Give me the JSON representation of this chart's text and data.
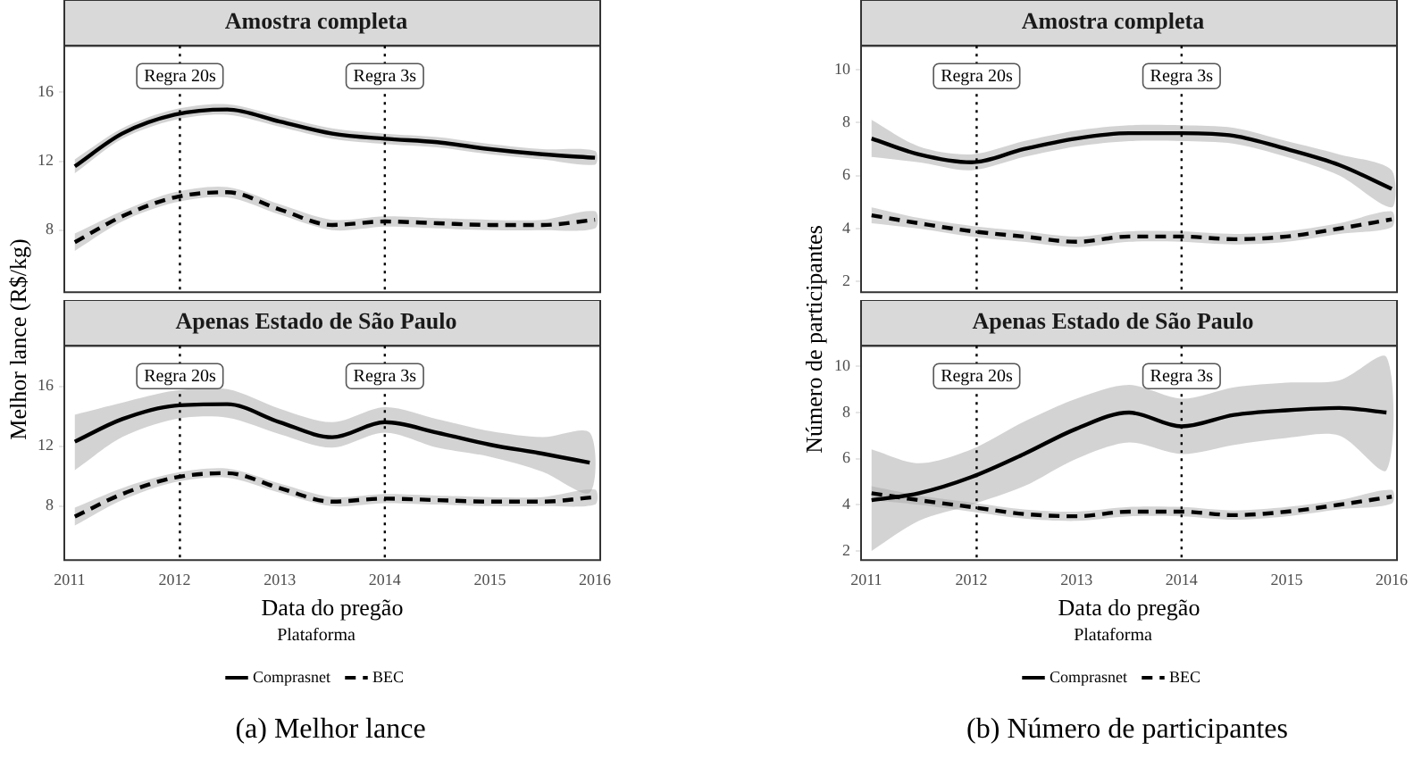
{
  "chart_data": [
    {
      "type": "line",
      "title": "Amostra completa",
      "ylabel": "Melhor lance (R$/kg)",
      "x": [
        2011.05,
        2011.5,
        2012,
        2012.5,
        2013,
        2013.5,
        2014,
        2014.5,
        2015,
        2015.5,
        2016
      ],
      "xlim": [
        2010.95,
        2016.05
      ],
      "xticks": [
        2011,
        2012,
        2013,
        2014,
        2015,
        2016
      ],
      "ylim": [
        4.4,
        18.7
      ],
      "yticks": [
        8,
        12,
        16
      ],
      "tick_labels": "y",
      "grid": false,
      "legend": false,
      "marker": "none",
      "series": [
        {
          "color": "#000000",
          "line_style": "solid",
          "values": [
            11.7,
            13.6,
            14.7,
            15.0,
            14.3,
            13.6,
            13.3,
            13.1,
            12.7,
            12.4,
            12.2
          ],
          "lower": [
            11.3,
            13.3,
            14.4,
            14.7,
            14.0,
            13.3,
            13.0,
            12.8,
            12.4,
            12.1,
            11.8
          ],
          "upper": [
            12.1,
            13.9,
            15.0,
            15.3,
            14.6,
            13.9,
            13.6,
            13.4,
            13.0,
            12.7,
            12.6
          ]
        },
        {
          "color": "#000000",
          "line_style": "dashed",
          "values": [
            7.3,
            8.8,
            9.9,
            10.2,
            9.2,
            8.3,
            8.5,
            8.4,
            8.3,
            8.3,
            8.6
          ],
          "lower": [
            6.8,
            8.5,
            9.6,
            9.9,
            8.9,
            8.0,
            8.2,
            8.1,
            8.0,
            8.0,
            8.1
          ],
          "upper": [
            7.8,
            9.1,
            10.2,
            10.5,
            9.5,
            8.6,
            8.8,
            8.7,
            8.6,
            8.6,
            9.1
          ]
        }
      ],
      "ref_lines": [
        {
          "axis": "x",
          "value": 2012.05,
          "label": "Regra 20s",
          "line_style": "dotted"
        },
        {
          "axis": "x",
          "value": 2014,
          "label": "Regra 3s",
          "line_style": "dotted"
        }
      ]
    },
    {
      "type": "line",
      "title": "Apenas Estado de São Paulo",
      "xlabel": "Data do pregão",
      "legend_title": "Plataforma",
      "annotations": [
        "(a) Melhor lance"
      ],
      "x": [
        2011.05,
        2011.5,
        2012,
        2012.5,
        2013,
        2013.5,
        2014,
        2014.5,
        2015,
        2015.5,
        2015.95
      ],
      "xlim": [
        2010.95,
        2016.05
      ],
      "xticks": [
        2011,
        2012,
        2013,
        2014,
        2015,
        2016
      ],
      "ylim": [
        4.4,
        18.7
      ],
      "yticks": [
        8,
        12,
        16
      ],
      "grid": false,
      "legend": "bottom",
      "marker": "none",
      "series": [
        {
          "name": "Comprasnet",
          "color": "#000000",
          "line_style": "solid",
          "values": [
            12.3,
            13.8,
            14.7,
            14.8,
            13.6,
            12.6,
            13.6,
            12.9,
            12.1,
            11.5,
            10.9
          ],
          "lower": [
            10.4,
            12.6,
            13.8,
            13.9,
            12.8,
            11.9,
            12.9,
            11.9,
            11.3,
            10.3,
            8.9
          ],
          "upper": [
            14.1,
            14.9,
            15.7,
            15.8,
            14.5,
            13.6,
            14.6,
            13.8,
            13.0,
            12.6,
            12.9
          ]
        },
        {
          "name": "BEC",
          "color": "#000000",
          "line_style": "dashed",
          "x": [
            2011.05,
            2011.5,
            2012,
            2012.5,
            2013,
            2013.5,
            2014,
            2014.5,
            2015,
            2015.5,
            2016
          ],
          "values": [
            7.3,
            8.8,
            9.9,
            10.2,
            9.2,
            8.3,
            8.5,
            8.4,
            8.3,
            8.3,
            8.6
          ],
          "lower": [
            6.7,
            8.4,
            9.6,
            9.9,
            8.9,
            8.0,
            8.2,
            8.1,
            8.0,
            8.0,
            8.1
          ],
          "upper": [
            7.9,
            9.2,
            10.2,
            10.5,
            9.5,
            8.6,
            8.8,
            8.7,
            8.6,
            8.6,
            9.1
          ]
        }
      ],
      "ref_lines": [
        {
          "axis": "x",
          "value": 2012.05,
          "label": "Regra 20s",
          "line_style": "dotted"
        },
        {
          "axis": "x",
          "value": 2014,
          "label": "Regra 3s",
          "line_style": "dotted"
        }
      ]
    },
    {
      "type": "line",
      "title": "Amostra completa",
      "ylabel": "Número de participantes",
      "x": [
        2011.05,
        2011.5,
        2012,
        2012.5,
        2013,
        2013.5,
        2014,
        2014.5,
        2015,
        2015.5,
        2016
      ],
      "xlim": [
        2010.95,
        2016.05
      ],
      "xticks": [
        2011,
        2012,
        2013,
        2014,
        2015,
        2016
      ],
      "ylim": [
        1.6,
        10.9
      ],
      "yticks": [
        2,
        4,
        6,
        8,
        10
      ],
      "tick_labels": "y",
      "grid": false,
      "legend": false,
      "marker": "none",
      "series": [
        {
          "color": "#000000",
          "line_style": "solid",
          "values": [
            7.4,
            6.8,
            6.5,
            7.0,
            7.4,
            7.6,
            7.6,
            7.5,
            7.0,
            6.4,
            5.5
          ],
          "lower": [
            6.7,
            6.5,
            6.2,
            6.7,
            7.1,
            7.3,
            7.3,
            7.2,
            6.7,
            6.0,
            4.8
          ],
          "upper": [
            8.1,
            7.1,
            6.8,
            7.3,
            7.7,
            7.9,
            7.9,
            7.8,
            7.3,
            6.8,
            6.2
          ]
        },
        {
          "color": "#000000",
          "line_style": "dashed",
          "values": [
            4.5,
            4.2,
            3.9,
            3.7,
            3.5,
            3.7,
            3.7,
            3.6,
            3.7,
            4.0,
            4.35
          ],
          "lower": [
            4.2,
            4.0,
            3.7,
            3.5,
            3.3,
            3.5,
            3.5,
            3.4,
            3.5,
            3.8,
            4.05
          ],
          "upper": [
            4.8,
            4.4,
            4.1,
            3.9,
            3.7,
            3.9,
            3.9,
            3.8,
            3.9,
            4.2,
            4.65
          ]
        }
      ],
      "ref_lines": [
        {
          "axis": "x",
          "value": 2012.05,
          "label": "Regra 20s",
          "line_style": "dotted"
        },
        {
          "axis": "x",
          "value": 2014,
          "label": "Regra 3s",
          "line_style": "dotted"
        }
      ]
    },
    {
      "type": "line",
      "title": "Apenas Estado de São Paulo",
      "xlabel": "Data do pregão",
      "legend_title": "Plataforma",
      "annotations": [
        "(b) Número de participantes"
      ],
      "x": [
        2011.05,
        2011.5,
        2012,
        2012.5,
        2013,
        2013.5,
        2014,
        2014.5,
        2015,
        2015.5,
        2015.95
      ],
      "xlim": [
        2010.95,
        2016.05
      ],
      "xticks": [
        2011,
        2012,
        2013,
        2014,
        2015,
        2016
      ],
      "ylim": [
        1.6,
        10.9
      ],
      "yticks": [
        2,
        4,
        6,
        8,
        10
      ],
      "grid": false,
      "legend": "bottom",
      "marker": "none",
      "series": [
        {
          "name": "Comprasnet",
          "color": "#000000",
          "line_style": "solid",
          "values": [
            4.2,
            4.5,
            5.2,
            6.2,
            7.3,
            8.0,
            7.4,
            7.9,
            8.1,
            8.2,
            8.0
          ],
          "lower": [
            2.0,
            3.3,
            4.0,
            4.8,
            6.0,
            6.7,
            6.2,
            6.6,
            6.9,
            7.0,
            5.5
          ],
          "upper": [
            6.4,
            5.8,
            6.4,
            7.6,
            8.6,
            9.2,
            8.6,
            9.1,
            9.3,
            9.4,
            10.4
          ]
        },
        {
          "name": "BEC",
          "color": "#000000",
          "line_style": "dashed",
          "x": [
            2011.05,
            2011.5,
            2012,
            2012.5,
            2013,
            2013.5,
            2014,
            2014.5,
            2015,
            2015.5,
            2016
          ],
          "values": [
            4.5,
            4.2,
            3.9,
            3.6,
            3.5,
            3.7,
            3.7,
            3.55,
            3.7,
            4.0,
            4.35
          ],
          "lower": [
            4.2,
            4.0,
            3.7,
            3.4,
            3.3,
            3.5,
            3.5,
            3.35,
            3.5,
            3.8,
            4.05
          ],
          "upper": [
            4.8,
            4.4,
            4.1,
            3.8,
            3.7,
            3.9,
            3.9,
            3.75,
            3.9,
            4.2,
            4.65
          ]
        }
      ],
      "ref_lines": [
        {
          "axis": "x",
          "value": 2012.05,
          "label": "Regra 20s",
          "line_style": "dotted"
        },
        {
          "axis": "x",
          "value": 2014,
          "label": "Regra 3s",
          "line_style": "dotted"
        }
      ]
    }
  ]
}
